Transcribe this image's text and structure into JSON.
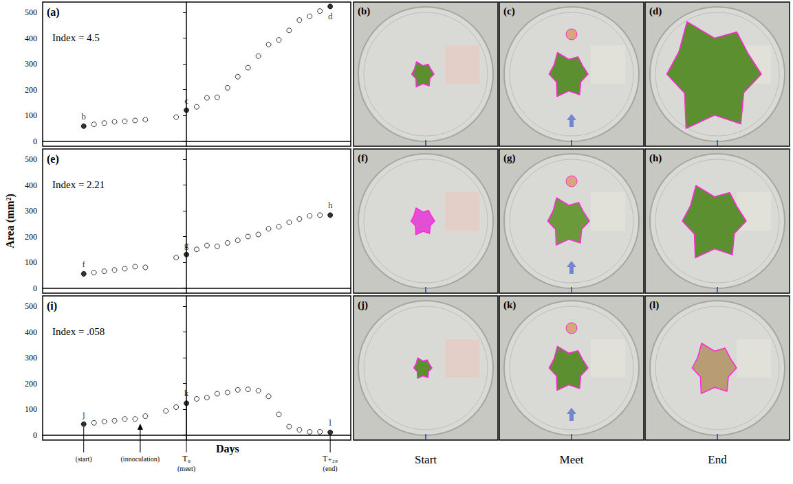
{
  "chart_data": [
    {
      "type": "scatter",
      "title": "(a)",
      "annotation": "Index = 4.5",
      "color": "#000000",
      "marker": "circle",
      "x": [
        -20,
        -18,
        -16,
        -14,
        -12,
        -10,
        -8,
        -2,
        0,
        2,
        4,
        6,
        8,
        10,
        12,
        14,
        16,
        18,
        20,
        22,
        24,
        26,
        28
      ],
      "values": [
        58,
        65,
        70,
        75,
        77,
        80,
        83,
        93,
        120,
        133,
        168,
        170,
        207,
        250,
        285,
        330,
        375,
        393,
        430,
        470,
        485,
        505,
        523
      ],
      "point_labels": [
        "b",
        null,
        null,
        null,
        null,
        null,
        null,
        null,
        "c",
        null,
        null,
        null,
        null,
        null,
        null,
        null,
        null,
        null,
        null,
        null,
        null,
        null,
        "d"
      ],
      "xlim": [
        -28,
        32
      ],
      "ylim": [
        -20,
        540
      ],
      "yticks": [
        0,
        100,
        200,
        300,
        400,
        500
      ],
      "grid": false,
      "tick_labels": "y"
    },
    {
      "type": "scatter",
      "title": "(e)",
      "annotation": "Index = 2.21",
      "color": "#000000",
      "marker": "circle",
      "x": [
        -20,
        -18,
        -16,
        -14,
        -12,
        -10,
        -8,
        -2,
        0,
        2,
        4,
        6,
        8,
        10,
        12,
        14,
        16,
        18,
        20,
        22,
        24,
        26,
        28
      ],
      "values": [
        55,
        60,
        65,
        70,
        75,
        83,
        80,
        118,
        130,
        150,
        165,
        162,
        175,
        185,
        200,
        208,
        230,
        238,
        255,
        268,
        280,
        283,
        283
      ],
      "point_labels": [
        "f",
        null,
        null,
        null,
        null,
        null,
        null,
        null,
        "g",
        null,
        null,
        null,
        null,
        null,
        null,
        null,
        null,
        null,
        null,
        null,
        null,
        null,
        "h"
      ],
      "xlim": [
        -28,
        32
      ],
      "ylim": [
        -20,
        540
      ],
      "yticks": [
        0,
        100,
        200,
        300,
        400,
        500
      ],
      "grid": false,
      "tick_labels": "y"
    },
    {
      "type": "scatter",
      "title": "(i)",
      "annotation": "Index = .058",
      "color": "#000000",
      "marker": "circle",
      "x": [
        -20,
        -18,
        -16,
        -14,
        -12,
        -10,
        -8,
        -4,
        -2,
        0,
        2,
        4,
        6,
        8,
        10,
        12,
        14,
        16,
        18,
        20,
        22,
        24,
        26,
        28
      ],
      "values": [
        42,
        47,
        52,
        55,
        62,
        62,
        73,
        93,
        108,
        123,
        140,
        145,
        160,
        165,
        175,
        177,
        172,
        150,
        80,
        32,
        20,
        12,
        12,
        10
      ],
      "point_labels": [
        "j",
        null,
        null,
        null,
        null,
        null,
        null,
        null,
        null,
        "k",
        null,
        null,
        null,
        null,
        null,
        null,
        null,
        null,
        null,
        null,
        null,
        null,
        null,
        "l"
      ],
      "xlim": [
        -28,
        32
      ],
      "ylim": [
        -20,
        540
      ],
      "yticks": [
        0,
        100,
        200,
        300,
        400,
        500
      ],
      "grid": false,
      "tick_labels": "y"
    }
  ],
  "y_label": "Area (mm²)",
  "x_label": "Days",
  "axis_markers": [
    {
      "x": -20,
      "label": "(start)"
    },
    {
      "x": -9,
      "label": "(innoculation)"
    },
    {
      "x": 0,
      "label": "T₀",
      "note": "(meet)"
    },
    {
      "x": 28,
      "label": "T₊₂₈",
      "note": "(end)"
    }
  ],
  "photos": {
    "panels": [
      [
        "(b)",
        "(c)",
        "(d)"
      ],
      [
        "(f)",
        "(g)",
        "(h)"
      ],
      [
        "(j)",
        "(k)",
        "(l)"
      ]
    ],
    "columns": [
      "Start",
      "Meet",
      "End"
    ]
  }
}
